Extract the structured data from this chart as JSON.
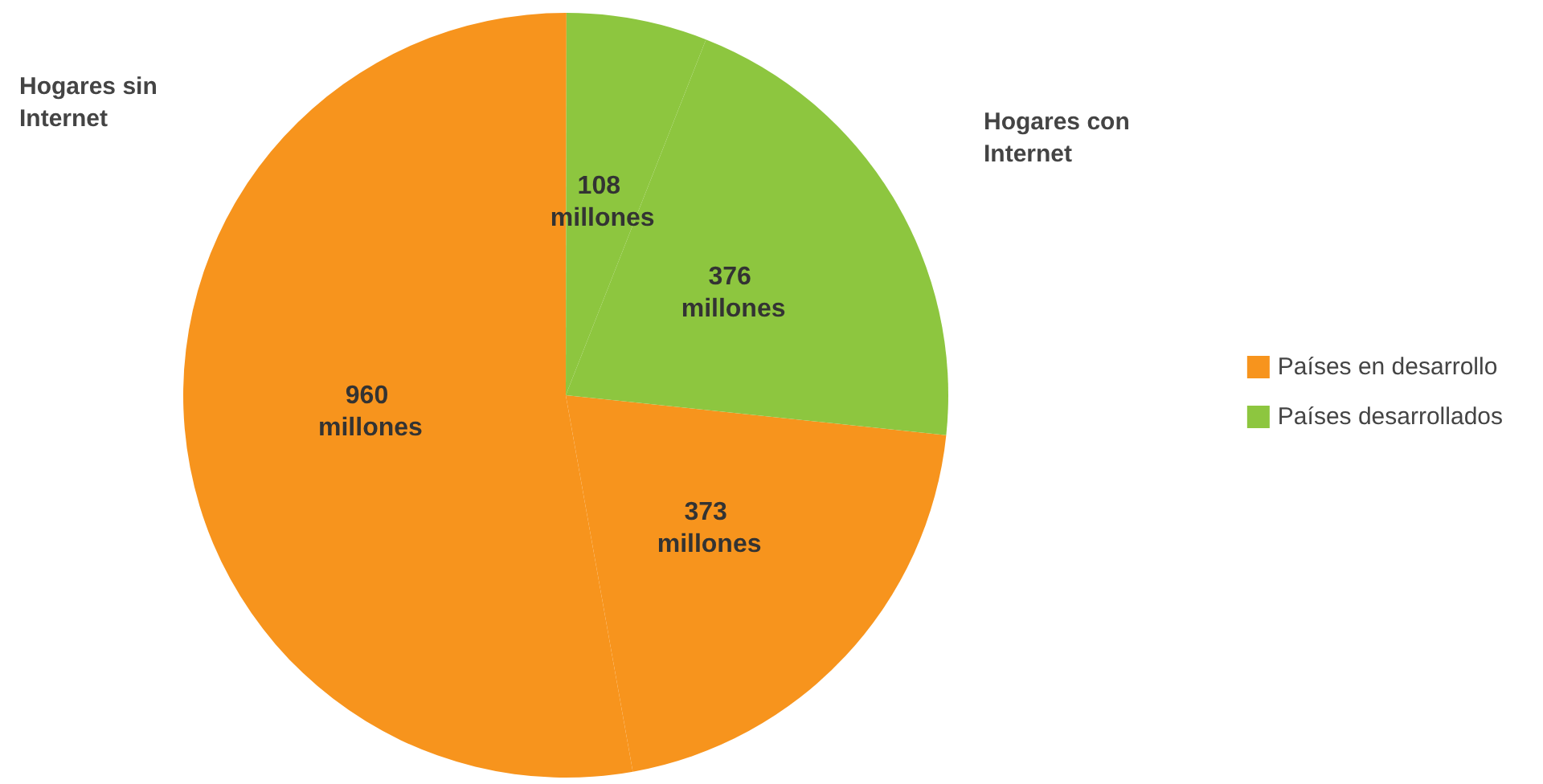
{
  "chart_data": {
    "type": "pie",
    "categories": [
      "Países en desarrollo",
      null,
      "Países desarrollados",
      null
    ],
    "values": [
      373,
      960,
      108,
      376
    ],
    "colors": [
      "#f7941d",
      "#f7941d",
      "#8dc63f",
      "#8dc63f"
    ],
    "value_labels": [
      "373 millones",
      "960 millones",
      "108 millones",
      "376 millones"
    ],
    "annotations": [
      "Hogares sin Internet",
      "Hogares con Internet"
    ],
    "legend": "right"
  }
}
